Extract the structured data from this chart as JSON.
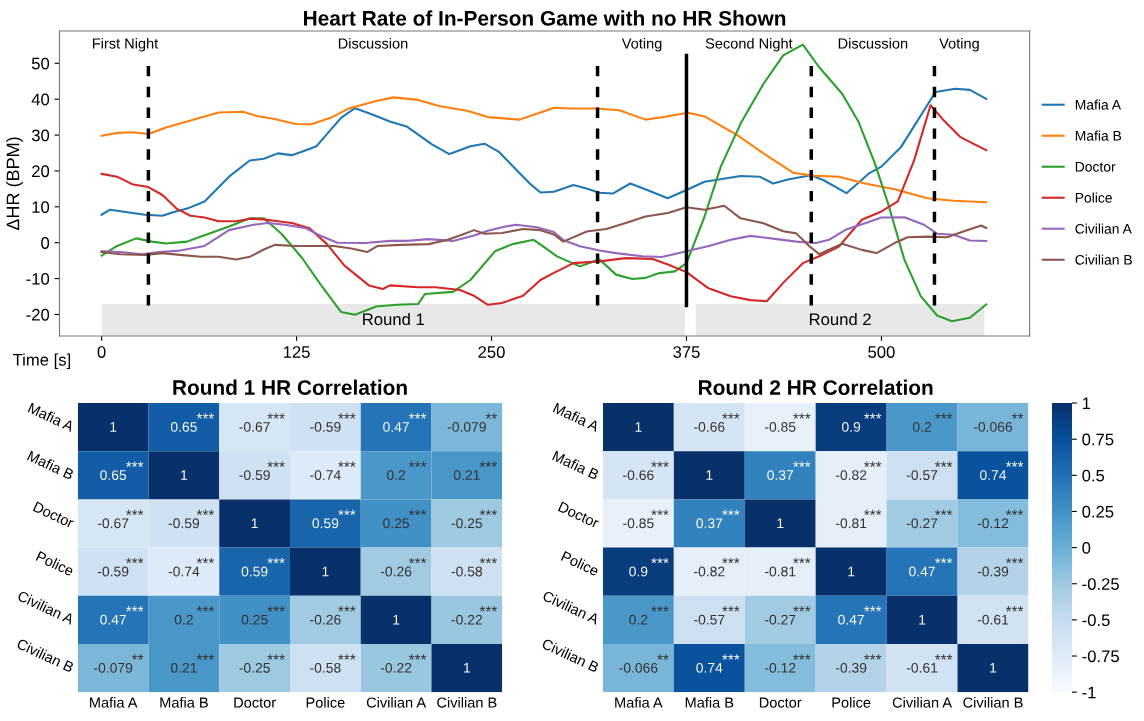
{
  "chart_data": [
    {
      "type": "line",
      "title": "Heart Rate of In-Person Game with no HR Shown",
      "xlabel": "Time [s]",
      "ylabel": "ΔHR (BPM)",
      "xlim": [
        -27,
        595
      ],
      "ylim": [
        -26,
        59
      ],
      "xticks": [
        0,
        125,
        250,
        375,
        500
      ],
      "yticks": [
        -20,
        -10,
        0,
        10,
        20,
        30,
        40,
        50
      ],
      "legend": "right",
      "grid": false,
      "series": [
        {
          "name": "Mafia A",
          "color": "#1f77b4",
          "x": [
            0,
            5.4,
            27.8,
            39,
            45.8,
            54.8,
            66,
            81.7,
            95,
            104,
            113,
            122,
            128.8,
            137.8,
            153.5,
            162.5,
            171.4,
            184.9,
            196,
            211.8,
            223,
            236.5,
            245.5,
            254.5,
            265.7,
            274.7,
            281.4,
            290,
            302.5,
            311,
            319,
            327.7,
            339,
            349.8,
            363,
            375,
            386.6,
            409.7,
            422,
            430.6,
            440,
            454.7,
            463,
            477.6,
            492,
            500,
            512.6,
            534.7,
            547.3,
            556.7,
            567.2
          ],
          "values": [
            7.8,
            9.2,
            7.8,
            7.5,
            8.5,
            9.5,
            11.5,
            18.4,
            22.9,
            23.4,
            24.9,
            24.4,
            25.4,
            26.9,
            34.8,
            37.5,
            36.1,
            33.8,
            32.3,
            27.4,
            24.7,
            26.9,
            27.6,
            25.4,
            20.4,
            16.4,
            14.0,
            14.2,
            16.1,
            15.1,
            13.9,
            13.7,
            16.5,
            14.7,
            12.4,
            14.7,
            17.0,
            18.6,
            18.4,
            16.5,
            17.6,
            18.8,
            17.4,
            13.8,
            19.3,
            21.2,
            26.7,
            42.0,
            42.9,
            42.6,
            40.1
          ]
        },
        {
          "name": "Mafia B",
          "color": "#ff7f0e",
          "x": [
            0,
            9.9,
            20.2,
            30,
            41.3,
            54.8,
            75,
            90.7,
            99.6,
            110.9,
            124.3,
            134.4,
            146.8,
            158,
            176,
            187.2,
            202.9,
            216.3,
            234.3,
            247.7,
            267.9,
            281.4,
            290,
            300.4,
            317.2,
            331.9,
            348.7,
            361.3,
            376,
            386.6,
            407.6,
            424.4,
            443.3,
            455.9,
            472.7,
            489.5,
            508.4,
            529.4,
            546.2,
            567.2
          ],
          "values": [
            29.8,
            30.6,
            30.8,
            30.3,
            32.1,
            33.8,
            36.3,
            36.5,
            35.3,
            34.5,
            33.1,
            33.0,
            34.8,
            37.3,
            39.5,
            40.5,
            39.8,
            38.1,
            36.8,
            35.0,
            34.3,
            36.3,
            37.6,
            37.4,
            37.4,
            36.9,
            34.3,
            35.1,
            36.2,
            35.2,
            30.0,
            24.9,
            19.5,
            18.7,
            18.4,
            16.5,
            14.9,
            12.4,
            11.7,
            11.3
          ]
        },
        {
          "name": "Doctor",
          "color": "#2ca02c",
          "x": [
            0,
            9.9,
            22.2,
            32.3,
            41.3,
            54.8,
            63.7,
            81.7,
            95.2,
            104,
            115.3,
            128.8,
            140,
            153.5,
            162.5,
            176,
            189.4,
            202.9,
            207.3,
            225.3,
            236.5,
            252.2,
            263.5,
            277,
            283.3,
            292,
            306.7,
            319.3,
            329.8,
            340.3,
            348.7,
            357.1,
            367.6,
            375,
            386.6,
            397,
            409.7,
            424.4,
            437,
            449.6,
            460.1,
            474.8,
            485.3,
            495.8,
            504.2,
            514.7,
            525.2,
            535.7,
            545.2,
            556.7,
            567.2
          ],
          "values": [
            -3.6,
            -0.9,
            1.2,
            0.3,
            -0.2,
            0.3,
            1.7,
            4.5,
            6.8,
            6.8,
            2.5,
            -4.4,
            -11.4,
            -19.3,
            -20.1,
            -17.8,
            -17.3,
            -17.1,
            -14.3,
            -13.7,
            -10.4,
            -2.4,
            -0.4,
            0.8,
            -1.1,
            -3.8,
            -6.6,
            -4.7,
            -8.9,
            -10.1,
            -9.8,
            -8.5,
            -8.0,
            -5.7,
            7.3,
            21.2,
            33.2,
            44.3,
            52.2,
            55.2,
            48.9,
            41.5,
            33.7,
            22.1,
            11.0,
            -4.7,
            -14.9,
            -20.3,
            -21.9,
            -20.9,
            -17.2
          ]
        },
        {
          "name": "Police",
          "color": "#d62728",
          "x": [
            0,
            9.9,
            20.2,
            30,
            39,
            48,
            57,
            66,
            75,
            86.2,
            95.2,
            104,
            113,
            122,
            133.3,
            144.5,
            155.7,
            171.4,
            180.3,
            184.9,
            202.9,
            214.1,
            229.8,
            238.8,
            247.7,
            256.7,
            270.2,
            281.4,
            290,
            302.5,
            319.3,
            336.1,
            352.9,
            363.1,
            375,
            388.7,
            403.4,
            416,
            426.5,
            437,
            449.6,
            460.1,
            472.7,
            487.4,
            500,
            510.5,
            521,
            531.5,
            539.9,
            550.4,
            558.8,
            567.2
          ],
          "values": [
            19.2,
            18.4,
            16.2,
            15.5,
            13.3,
            9.5,
            7.5,
            7.0,
            6.0,
            6.0,
            6.7,
            6.5,
            6.0,
            5.5,
            4.0,
            -0.4,
            -6.4,
            -11.9,
            -12.9,
            -11.9,
            -12.4,
            -12.4,
            -13.2,
            -14.8,
            -17.3,
            -16.8,
            -14.8,
            -10.4,
            -8.4,
            -5.7,
            -5.2,
            -4.3,
            -4.5,
            -6.1,
            -8.2,
            -12.6,
            -14.9,
            -16.0,
            -16.3,
            -11.2,
            -5.7,
            -3.8,
            -1.1,
            6.4,
            8.7,
            11.5,
            23.0,
            38.3,
            34.1,
            29.5,
            27.6,
            25.8
          ]
        },
        {
          "name": "Civilian A",
          "color": "#9467bd",
          "x": [
            0,
            12.1,
            25.6,
            36.8,
            50.3,
            66,
            81.7,
            97.4,
            106.4,
            117.6,
            131.1,
            140,
            151.2,
            169.2,
            184.9,
            196.1,
            209.6,
            225.3,
            238.8,
            247.7,
            258.9,
            265.7,
            279.1,
            290,
            296.2,
            306.7,
            319.3,
            329.8,
            346.6,
            359.2,
            375,
            388.7,
            403.4,
            416,
            432.8,
            445.4,
            458,
            466.4,
            476.9,
            489.5,
            500,
            514.7,
            527.3,
            535.7,
            546.2,
            556.7,
            567.2
          ],
          "values": [
            -2.4,
            -2.6,
            -3.2,
            -2.6,
            -2.2,
            -0.9,
            3.5,
            5.0,
            5.5,
            5.0,
            4.0,
            2.0,
            0.0,
            -0.1,
            0.5,
            0.5,
            1.0,
            0.5,
            2.0,
            3.3,
            4.5,
            5.0,
            4.3,
            3.0,
            0.7,
            -1.0,
            -2.2,
            -2.9,
            -3.8,
            -4.0,
            -2.4,
            -1.0,
            0.8,
            1.9,
            1.0,
            0.3,
            -0.1,
            0.8,
            3.6,
            5.4,
            7.0,
            7.1,
            5.0,
            2.5,
            2.2,
            0.6,
            0.5
          ]
        },
        {
          "name": "Civilian B",
          "color": "#8c564b",
          "x": [
            0,
            12.1,
            27.8,
            39,
            50.3,
            63.7,
            75,
            86.2,
            95.2,
            104,
            111,
            124.3,
            135.5,
            148.9,
            160.2,
            170.3,
            177,
            191.6,
            209.6,
            220.8,
            229.8,
            238.8,
            245.5,
            256.7,
            270.2,
            281.4,
            290,
            296,
            311,
            323.6,
            336.1,
            348.7,
            363.1,
            375,
            386.6,
            399.2,
            409.7,
            424.4,
            437,
            445.4,
            453.8,
            460.1,
            474.8,
            487.4,
            496.9,
            508.4,
            516.8,
            529.4,
            542,
            552.5,
            564,
            567.2
          ],
          "values": [
            -2.6,
            -3.2,
            -3.4,
            -2.9,
            -3.4,
            -3.9,
            -3.9,
            -4.7,
            -3.9,
            -1.9,
            -0.6,
            -0.9,
            -0.9,
            -0.9,
            -1.6,
            -2.6,
            -0.9,
            -0.6,
            -0.4,
            0.7,
            2.0,
            3.5,
            2.5,
            2.7,
            3.8,
            3.5,
            2.3,
            0.3,
            3.1,
            3.8,
            5.5,
            7.3,
            8.3,
            9.9,
            9.2,
            10.3,
            6.8,
            5.4,
            3.2,
            2.6,
            -1.0,
            -3.2,
            -0.3,
            -2.0,
            -2.9,
            -0.1,
            1.5,
            1.7,
            1.5,
            3.1,
            4.8,
            4.1
          ]
        }
      ],
      "ref_lines": [
        {
          "axis": "x",
          "value": 30,
          "line_style": "dashed",
          "color": "#000000"
        },
        {
          "axis": "x",
          "value": 318,
          "line_style": "dashed",
          "color": "#000000"
        },
        {
          "axis": "x",
          "value": 375,
          "line_style": "solid",
          "color": "#000000"
        },
        {
          "axis": "x",
          "value": 455,
          "line_style": "dashed",
          "color": "#000000"
        },
        {
          "axis": "x",
          "value": 534,
          "line_style": "dashed",
          "color": "#000000"
        }
      ],
      "bands": [
        {
          "axis": "x",
          "from": 0,
          "to": 374,
          "label": "Round 1",
          "color": "#e8e8e8"
        },
        {
          "axis": "x",
          "from": 381,
          "to": 566,
          "label": "Round 2",
          "color": "#e8e8e8"
        }
      ],
      "annotations": [
        "First Night",
        "Discussion",
        "Voting",
        "Second Night",
        "Discussion",
        "Voting"
      ]
    },
    {
      "type": "heatmap",
      "title": "Round 1 HR Correlation",
      "categories": [
        "Mafia A",
        "Mafia B",
        "Doctor",
        "Police",
        "Civilian A",
        "Civilian B"
      ],
      "y_categories": [
        "Mafia A",
        "Mafia B",
        "Doctor",
        "Police",
        "Civilian A",
        "Civilian B"
      ],
      "cells": [
        [
          1,
          0.65,
          -0.67,
          -0.59,
          0.47,
          -0.079
        ],
        [
          0.65,
          1,
          -0.59,
          -0.74,
          0.2,
          0.21
        ],
        [
          -0.67,
          -0.59,
          1,
          0.59,
          0.25,
          -0.25
        ],
        [
          -0.59,
          -0.74,
          0.59,
          1,
          -0.26,
          -0.58
        ],
        [
          0.47,
          0.2,
          0.25,
          -0.26,
          1,
          -0.22
        ],
        [
          -0.079,
          0.21,
          -0.25,
          -0.58,
          -0.22,
          1
        ]
      ],
      "cell_labels": [
        [
          "1",
          "0.65***",
          "-0.67***",
          "-0.59***",
          "0.47***",
          "-0.079**"
        ],
        [
          "0.65***",
          "1",
          "-0.59***",
          "-0.74***",
          "0.2***",
          "0.21***"
        ],
        [
          "-0.67***",
          "-0.59***",
          "1",
          "0.59***",
          "0.25***",
          "-0.25***"
        ],
        [
          "-0.59***",
          "-0.74***",
          "0.59***",
          "1",
          "-0.26***",
          "-0.58***"
        ],
        [
          "0.47***",
          "0.2***",
          "0.25***",
          "-0.26***",
          "1",
          "-0.22***"
        ],
        [
          "-0.079**",
          "0.21***",
          "-0.25***",
          "-0.58***",
          "-0.22***",
          "1"
        ]
      ]
    },
    {
      "type": "heatmap",
      "title": "Round 2 HR Correlation",
      "categories": [
        "Mafia A",
        "Mafia B",
        "Doctor",
        "Police",
        "Civilian A",
        "Civilian B"
      ],
      "y_categories": [
        "Mafia A",
        "Mafia B",
        "Doctor",
        "Police",
        "Civilian A",
        "Civilian B"
      ],
      "clim": [
        -1,
        1
      ],
      "cticks": [
        -1,
        -0.75,
        -0.5,
        -0.25,
        0,
        0.25,
        0.5,
        0.75,
        1
      ],
      "cells": [
        [
          1,
          -0.66,
          -0.85,
          0.9,
          0.2,
          -0.066
        ],
        [
          -0.66,
          1,
          0.37,
          -0.82,
          -0.57,
          0.74
        ],
        [
          -0.85,
          0.37,
          1,
          -0.81,
          -0.27,
          -0.12
        ],
        [
          0.9,
          -0.82,
          -0.81,
          1,
          0.47,
          -0.39
        ],
        [
          0.2,
          -0.57,
          -0.27,
          0.47,
          1,
          -0.61
        ],
        [
          -0.066,
          0.74,
          -0.12,
          -0.39,
          -0.61,
          1
        ]
      ],
      "cell_labels": [
        [
          "1",
          "-0.66***",
          "-0.85***",
          "0.9***",
          "0.2***",
          "-0.066**"
        ],
        [
          "-0.66***",
          "1",
          "0.37***",
          "-0.82***",
          "-0.57***",
          "0.74***"
        ],
        [
          "-0.85***",
          "0.37***",
          "1",
          "-0.81***",
          "-0.27***",
          "-0.12***"
        ],
        [
          "0.9***",
          "-0.82***",
          "-0.81***",
          "1",
          "0.47***",
          "-0.39***"
        ],
        [
          "0.2***",
          "-0.57***",
          "-0.27***",
          "0.47***",
          "1",
          "-0.61***"
        ],
        [
          "-0.066**",
          "0.74***",
          "-0.12***",
          "-0.39***",
          "-0.61***",
          "1"
        ]
      ]
    }
  ]
}
